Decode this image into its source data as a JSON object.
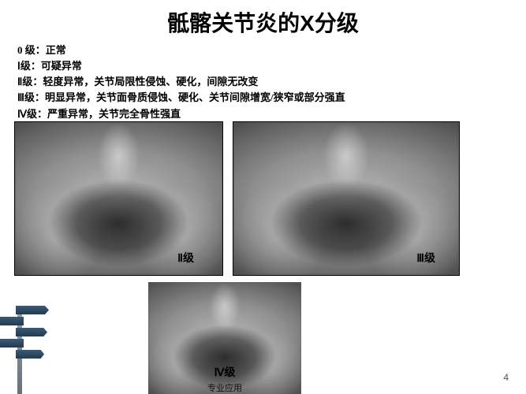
{
  "title": "骶髂关节炎的X分级",
  "grades": {
    "g0": "0 级：正常",
    "g1": "Ⅰ级：可疑异常",
    "g2": "Ⅱ级：轻度异常，关节局限性侵蚀、硬化，间隙无改变",
    "g3": "Ⅲ级：明显异常，关节面骨质侵蚀、硬化、关节间隙增宽/狭窄或部分强直",
    "g4": "Ⅳ级：严重异常，关节完全骨性强直"
  },
  "images": {
    "ii_label": "Ⅱ级",
    "iii_label": "Ⅲ级",
    "iv_label": "Ⅳ级",
    "iv_sub": "专业应用"
  },
  "page_number": "4"
}
